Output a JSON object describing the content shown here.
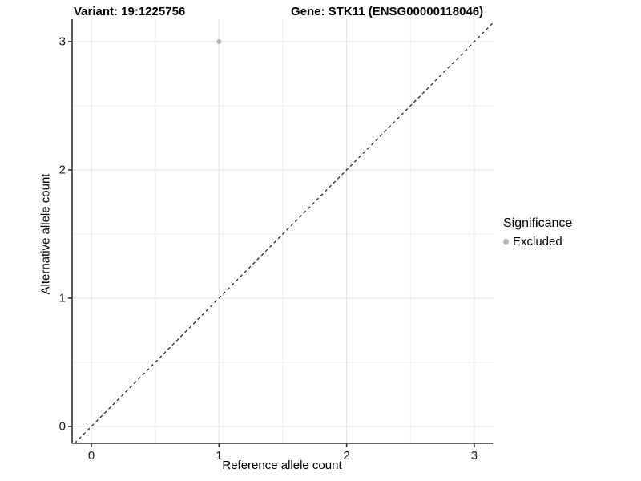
{
  "titles": {
    "left": "Variant: 19:1225756",
    "right": "Gene: STK11 (ENSG00000118046)"
  },
  "axes": {
    "x_label": "Reference allele count",
    "y_label": "Alternative allele count"
  },
  "legend": {
    "title": "Significance",
    "items": [
      {
        "label": "Excluded",
        "color": "#b3b3b3"
      }
    ]
  },
  "chart_data": {
    "type": "scatter",
    "title_left": "Variant: 19:1225756",
    "title_right": "Gene: STK11 (ENSG00000118046)",
    "xlabel": "Reference allele count",
    "ylabel": "Alternative allele count",
    "series": [
      {
        "name": "Excluded",
        "color": "#b3b3b3",
        "points": [
          {
            "x": 1,
            "y": 3
          }
        ]
      }
    ],
    "reference_line": {
      "kind": "identity_y_equals_x",
      "style": "dashed",
      "color": "#1a1a1a"
    },
    "x_axis": {
      "ticks": [
        0,
        1,
        2,
        3
      ],
      "minor_ticks": [
        0.5,
        1.5,
        2.5
      ],
      "range": [
        -0.151,
        3.145
      ]
    },
    "y_axis": {
      "ticks": [
        0,
        1,
        2,
        3
      ],
      "minor_ticks": [
        0.5,
        1.5,
        2.5
      ],
      "range": [
        -0.131,
        3.175
      ]
    },
    "grid": {
      "major": true,
      "minor": true,
      "major_color": "#e2e2e2",
      "minor_color": "#ededed"
    },
    "axis_line_color": "#333333",
    "legend_position": "right",
    "point_radius_px": 3
  }
}
